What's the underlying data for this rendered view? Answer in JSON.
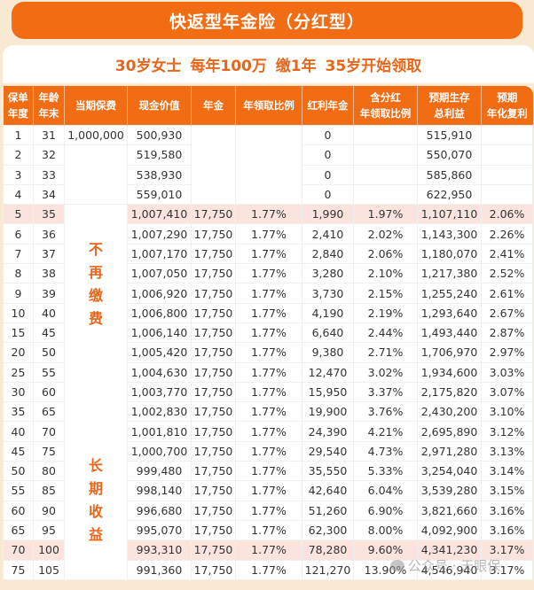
{
  "title": "快返型年金险（分红型）",
  "subtitle": "30岁女士   每年100万 缴1年   35岁开始领取",
  "colors": {
    "accent": "#f16c12",
    "highlight_row": "#fbe4de",
    "background": "#f7e9d2",
    "side_label": "#e8661a"
  },
  "table": {
    "headers": [
      [
        "保单",
        "年度"
      ],
      [
        "年龄",
        "年末"
      ],
      [
        "当期保费"
      ],
      [
        "现金价值"
      ],
      [
        "年金"
      ],
      [
        "年领取比例"
      ],
      [
        "红利年金"
      ],
      [
        "含分红",
        "年领取比例"
      ],
      [
        "预期生存",
        "总利益"
      ],
      [
        "预期",
        "年化复利"
      ]
    ],
    "side_labels": {
      "no_more_payment": "不再缴费",
      "long_term_income": "长期收益"
    },
    "rows": [
      {
        "year": "1",
        "age": "31",
        "premium": "1,000,000",
        "cash_value": "500,930",
        "annuity": "",
        "ratio": "",
        "bonus": "0",
        "ratio_with_bonus": "",
        "total_benefit": "515,910",
        "irr": "",
        "highlight": false
      },
      {
        "year": "2",
        "age": "32",
        "premium": "",
        "cash_value": "519,580",
        "annuity": "",
        "ratio": "",
        "bonus": "0",
        "ratio_with_bonus": "",
        "total_benefit": "550,070",
        "irr": "",
        "highlight": false
      },
      {
        "year": "3",
        "age": "33",
        "premium": "",
        "cash_value": "538,930",
        "annuity": "",
        "ratio": "",
        "bonus": "0",
        "ratio_with_bonus": "",
        "total_benefit": "585,860",
        "irr": "",
        "highlight": false
      },
      {
        "year": "4",
        "age": "34",
        "premium": "",
        "cash_value": "559,010",
        "annuity": "",
        "ratio": "",
        "bonus": "0",
        "ratio_with_bonus": "",
        "total_benefit": "622,950",
        "irr": "",
        "highlight": false
      },
      {
        "year": "5",
        "age": "35",
        "premium": "",
        "cash_value": "1,007,410",
        "annuity": "17,750",
        "ratio": "1.77%",
        "bonus": "1,990",
        "ratio_with_bonus": "1.97%",
        "total_benefit": "1,107,110",
        "irr": "2.06%",
        "highlight": true
      },
      {
        "year": "6",
        "age": "36",
        "premium": "",
        "cash_value": "1,007,290",
        "annuity": "17,750",
        "ratio": "1.77%",
        "bonus": "2,410",
        "ratio_with_bonus": "2.02%",
        "total_benefit": "1,143,300",
        "irr": "2.26%",
        "highlight": false
      },
      {
        "year": "7",
        "age": "37",
        "premium": "",
        "cash_value": "1,007,170",
        "annuity": "17,750",
        "ratio": "1.77%",
        "bonus": "2,840",
        "ratio_with_bonus": "2.06%",
        "total_benefit": "1,180,070",
        "irr": "2.41%",
        "highlight": false
      },
      {
        "year": "8",
        "age": "38",
        "premium": "",
        "cash_value": "1,007,050",
        "annuity": "17,750",
        "ratio": "1.77%",
        "bonus": "3,280",
        "ratio_with_bonus": "2.10%",
        "total_benefit": "1,217,380",
        "irr": "2.52%",
        "highlight": false
      },
      {
        "year": "9",
        "age": "39",
        "premium": "",
        "cash_value": "1,006,920",
        "annuity": "17,750",
        "ratio": "1.77%",
        "bonus": "3,730",
        "ratio_with_bonus": "2.15%",
        "total_benefit": "1,255,240",
        "irr": "2.61%",
        "highlight": false
      },
      {
        "year": "10",
        "age": "40",
        "premium": "",
        "cash_value": "1,006,800",
        "annuity": "17,750",
        "ratio": "1.77%",
        "bonus": "4,190",
        "ratio_with_bonus": "2.19%",
        "total_benefit": "1,293,640",
        "irr": "2.67%",
        "highlight": false
      },
      {
        "year": "15",
        "age": "45",
        "premium": "",
        "cash_value": "1,006,140",
        "annuity": "17,750",
        "ratio": "1.77%",
        "bonus": "6,640",
        "ratio_with_bonus": "2.44%",
        "total_benefit": "1,493,440",
        "irr": "2.87%",
        "highlight": false
      },
      {
        "year": "20",
        "age": "50",
        "premium": "",
        "cash_value": "1,005,420",
        "annuity": "17,750",
        "ratio": "1.77%",
        "bonus": "9,380",
        "ratio_with_bonus": "2.71%",
        "total_benefit": "1,706,970",
        "irr": "2.97%",
        "highlight": false
      },
      {
        "year": "25",
        "age": "55",
        "premium": "",
        "cash_value": "1,004,630",
        "annuity": "17,750",
        "ratio": "1.77%",
        "bonus": "12,470",
        "ratio_with_bonus": "3.02%",
        "total_benefit": "1,934,600",
        "irr": "3.03%",
        "highlight": false
      },
      {
        "year": "30",
        "age": "60",
        "premium": "",
        "cash_value": "1,003,770",
        "annuity": "17,750",
        "ratio": "1.77%",
        "bonus": "15,950",
        "ratio_with_bonus": "3.37%",
        "total_benefit": "2,175,820",
        "irr": "3.07%",
        "highlight": false
      },
      {
        "year": "35",
        "age": "65",
        "premium": "",
        "cash_value": "1,002,830",
        "annuity": "17,750",
        "ratio": "1.77%",
        "bonus": "19,900",
        "ratio_with_bonus": "3.76%",
        "total_benefit": "2,430,200",
        "irr": "3.10%",
        "highlight": false
      },
      {
        "year": "40",
        "age": "70",
        "premium": "",
        "cash_value": "1,001,810",
        "annuity": "17,750",
        "ratio": "1.77%",
        "bonus": "24,390",
        "ratio_with_bonus": "4.21%",
        "total_benefit": "2,695,890",
        "irr": "3.12%",
        "highlight": false
      },
      {
        "year": "45",
        "age": "75",
        "premium": "",
        "cash_value": "1,000,700",
        "annuity": "17,750",
        "ratio": "1.77%",
        "bonus": "29,540",
        "ratio_with_bonus": "4.73%",
        "total_benefit": "2,971,280",
        "irr": "3.13%",
        "highlight": false
      },
      {
        "year": "50",
        "age": "80",
        "premium": "",
        "cash_value": "999,480",
        "annuity": "17,750",
        "ratio": "1.77%",
        "bonus": "35,550",
        "ratio_with_bonus": "5.33%",
        "total_benefit": "3,254,040",
        "irr": "3.14%",
        "highlight": false
      },
      {
        "year": "55",
        "age": "85",
        "premium": "",
        "cash_value": "998,140",
        "annuity": "17,750",
        "ratio": "1.77%",
        "bonus": "42,640",
        "ratio_with_bonus": "6.04%",
        "total_benefit": "3,539,280",
        "irr": "3.15%",
        "highlight": false
      },
      {
        "year": "60",
        "age": "90",
        "premium": "",
        "cash_value": "996,680",
        "annuity": "17,750",
        "ratio": "1.77%",
        "bonus": "51,260",
        "ratio_with_bonus": "6.90%",
        "total_benefit": "3,821,660",
        "irr": "3.16%",
        "highlight": false
      },
      {
        "year": "65",
        "age": "95",
        "premium": "",
        "cash_value": "995,070",
        "annuity": "17,750",
        "ratio": "1.77%",
        "bonus": "62,300",
        "ratio_with_bonus": "8.00%",
        "total_benefit": "4,092,900",
        "irr": "3.16%",
        "highlight": false
      },
      {
        "year": "70",
        "age": "100",
        "premium": "",
        "cash_value": "993,310",
        "annuity": "17,750",
        "ratio": "1.77%",
        "bonus": "78,280",
        "ratio_with_bonus": "9.60%",
        "total_benefit": "4,341,230",
        "irr": "3.17%",
        "highlight": true
      },
      {
        "year": "75",
        "age": "105",
        "premium": "",
        "cash_value": "991,360",
        "annuity": "17,750",
        "ratio": "1.77%",
        "bonus": "121,270",
        "ratio_with_bonus": "13.90%",
        "total_benefit": "4,546,940",
        "irr": "3.17%",
        "highlight": false
      }
    ]
  },
  "watermark": {
    "icon": "wechat-icon",
    "text": "公众号 · 天眼保"
  }
}
